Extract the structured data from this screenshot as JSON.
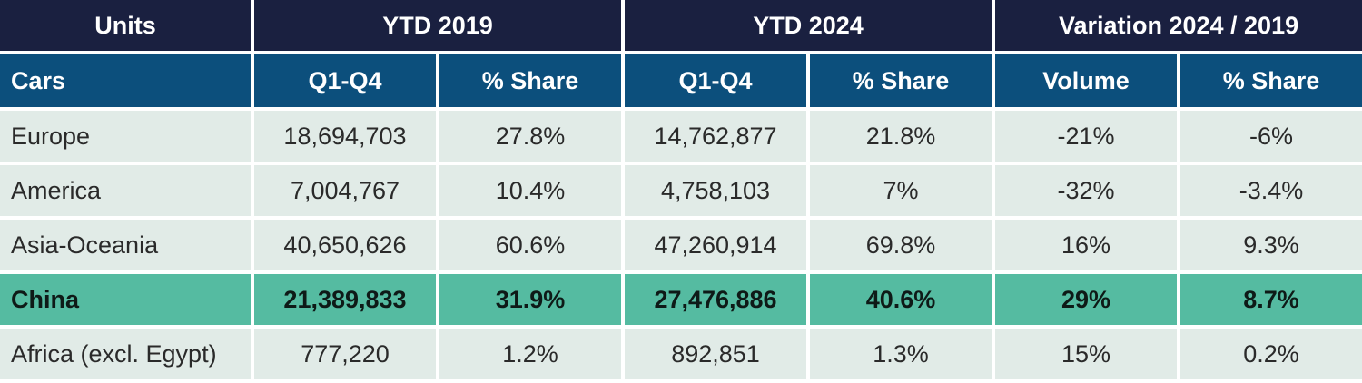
{
  "table": {
    "top_header": {
      "units": "Units",
      "ytd_2019": "YTD 2019",
      "ytd_2024": "YTD 2024",
      "variation": "Variation 2024 / 2019"
    },
    "sub_header": {
      "cars": "Cars",
      "q1q4_2019": "Q1-Q4",
      "share_2019": "% Share",
      "q1q4_2024": "Q1-Q4",
      "share_2024": "% Share",
      "volume": "Volume",
      "share_var": "% Share"
    },
    "rows": [
      {
        "region": "Europe",
        "q2019": "18,694,703",
        "s2019": "27.8%",
        "q2024": "14,762,877",
        "s2024": "21.8%",
        "volume": "-21%",
        "share": "-6%"
      },
      {
        "region": "America",
        "q2019": "7,004,767",
        "s2019": "10.4%",
        "q2024": "4,758,103",
        "s2024": "7%",
        "volume": "-32%",
        "share": "-3.4%"
      },
      {
        "region": "Asia-Oceania",
        "q2019": "40,650,626",
        "s2019": "60.6%",
        "q2024": "47,260,914",
        "s2024": "69.8%",
        "volume": "16%",
        "share": "9.3%"
      },
      {
        "region": "China",
        "q2019": "21,389,833",
        "s2019": "31.9%",
        "q2024": "27,476,886",
        "s2024": "40.6%",
        "volume": "29%",
        "share": "8.7%"
      },
      {
        "region": "Africa (excl. Egypt)",
        "q2019": "777,220",
        "s2019": "1.2%",
        "q2024": "892,851",
        "s2024": "1.3%",
        "volume": "15%",
        "share": "0.2%"
      }
    ]
  }
}
